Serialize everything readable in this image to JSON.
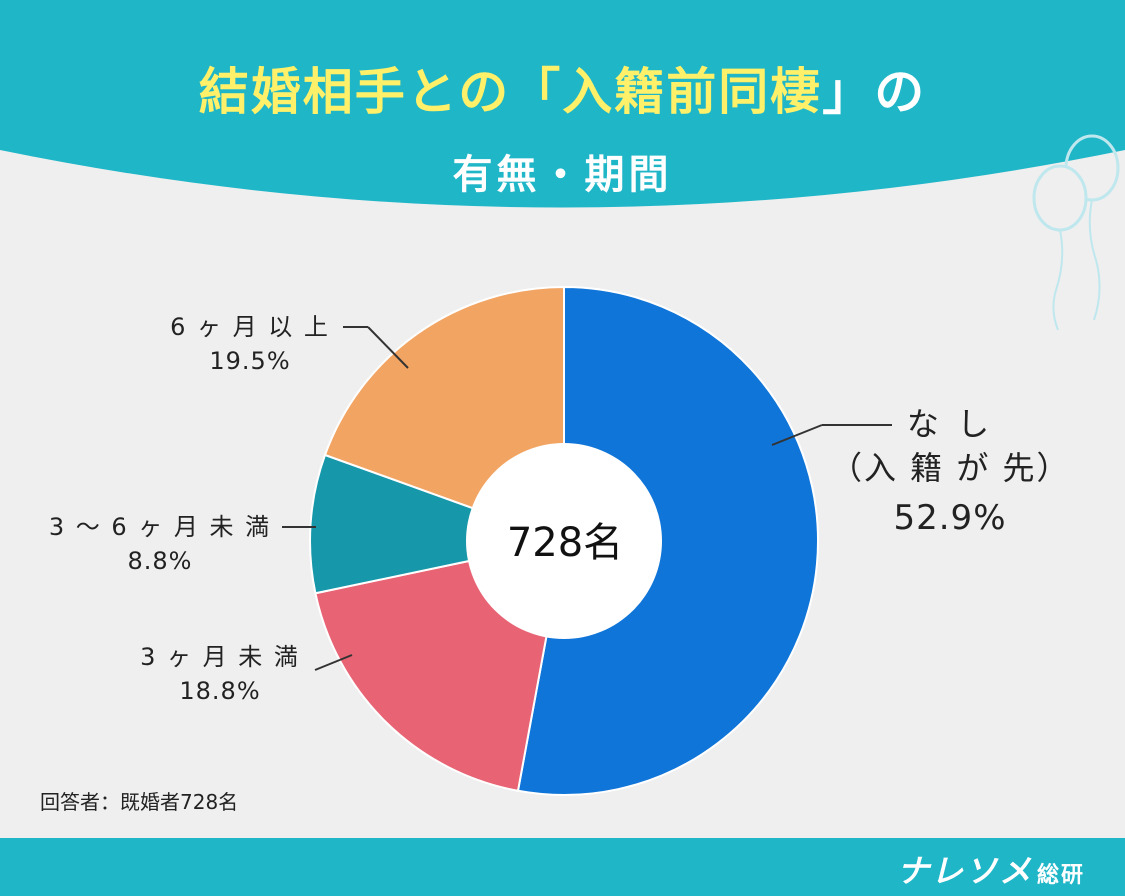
{
  "title": {
    "line1_prefix": "結婚相手との「",
    "line1_highlight": "入籍前同棲",
    "line1_suffix": "」の",
    "line2": "有無・期間"
  },
  "colors": {
    "header": "#1fb6c8",
    "title_yellow": "#fff06a",
    "background": "#efefef"
  },
  "chart_data": {
    "type": "pie",
    "center_label": "728名",
    "slices": [
      {
        "name": "なし",
        "sub": "（入籍が先）",
        "value": 52.9,
        "label": "52.9%",
        "color": "#1075d8"
      },
      {
        "name": "3ヶ月未満",
        "value": 18.8,
        "label": "18.8%",
        "color": "#e86373"
      },
      {
        "name": "3～6ヶ月未満",
        "value": 8.8,
        "label": "8.8%",
        "color": "#1798aa"
      },
      {
        "name": "6ヶ月以上",
        "value": 19.5,
        "label": "19.5%",
        "color": "#f2a463"
      }
    ]
  },
  "labels": {
    "none_name": "な し",
    "none_sub": "（入 籍 が 先）",
    "none_pct": "52.9%",
    "under3_name": "3 ヶ 月 未 満",
    "under3_pct": "18.8%",
    "three_six_name": "3 ～ 6 ヶ 月 未 満",
    "three_six_pct": "8.8%",
    "over6_name": "6 ヶ 月 以 上",
    "over6_pct": "19.5%"
  },
  "note": "回答者：既婚者728名",
  "footer": {
    "logo": "ナレソメ",
    "logo_small": "総研"
  }
}
